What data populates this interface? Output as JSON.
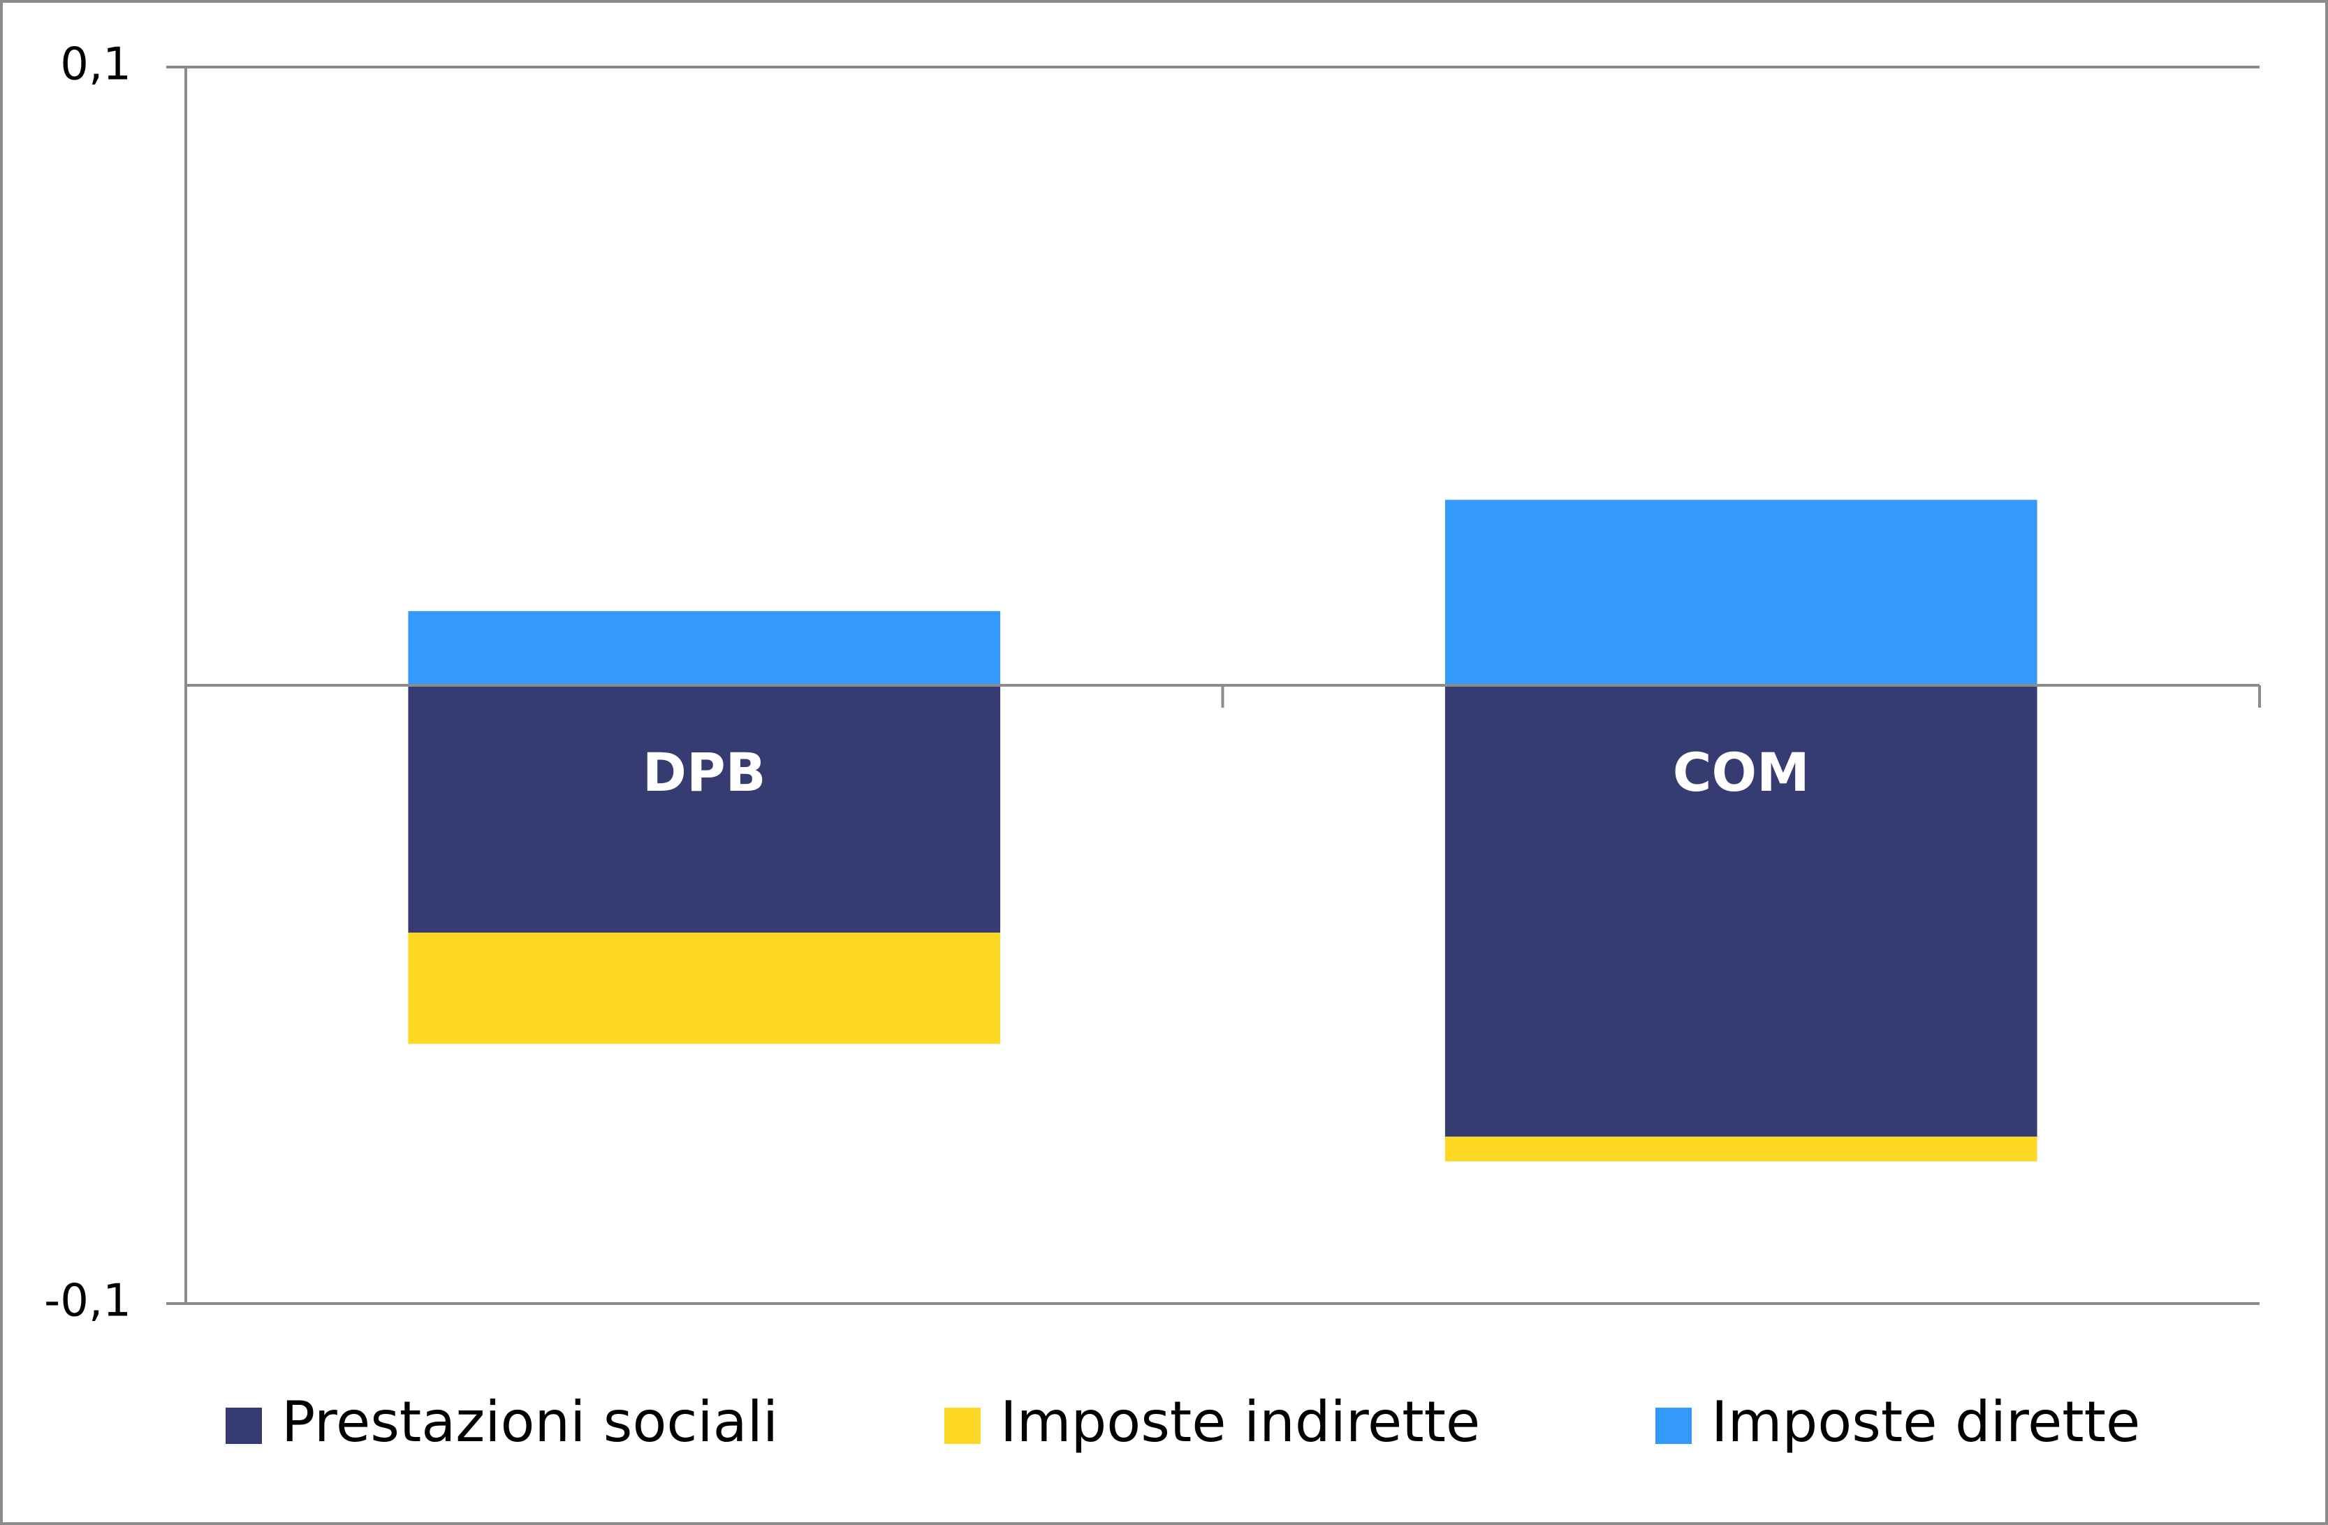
{
  "chart_data": {
    "type": "stacked_bar",
    "categories": [
      "DPB",
      "COM"
    ],
    "series": [
      {
        "name": "Prestazioni sociali",
        "color": "#363c72",
        "values": [
          -0.04,
          -0.073
        ]
      },
      {
        "name": "Imposte indirette",
        "color": "#fdd825",
        "values": [
          -0.018,
          -0.004
        ]
      },
      {
        "name": "Imposte dirette",
        "color": "#3399fb",
        "values": [
          0.012,
          0.03
        ]
      }
    ],
    "ylim": [
      -0.1,
      0.1
    ],
    "yticks": [
      {
        "value": -0.1,
        "label": "-0,1"
      },
      {
        "value": 0.1,
        "label": "0,1"
      }
    ],
    "grid": true,
    "legend": "bottom"
  }
}
